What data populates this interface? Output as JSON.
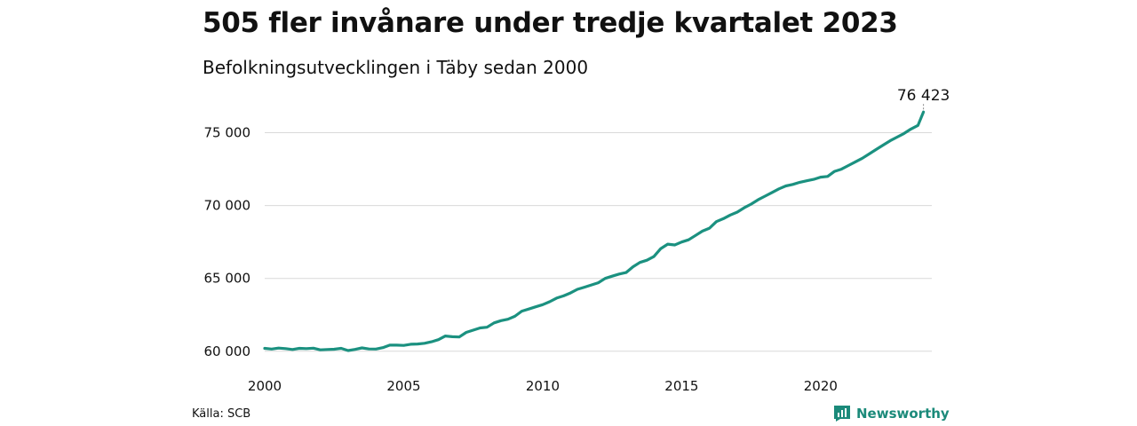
{
  "chart_data": {
    "type": "line",
    "title": "505 fler invånare under tredje kvartalet 2023",
    "subtitle": "Befolkningsutvecklingen i Täby sedan 2000",
    "xlabel": "",
    "ylabel": "",
    "xlim": [
      2000.0,
      2024.0
    ],
    "ylim": [
      59500,
      76800
    ],
    "x_ticks": [
      {
        "value": 2000,
        "label": "2000"
      },
      {
        "value": 2005,
        "label": "2005"
      },
      {
        "value": 2010,
        "label": "2010"
      },
      {
        "value": 2015,
        "label": "2015"
      },
      {
        "value": 2020,
        "label": "2020"
      }
    ],
    "y_ticks": [
      {
        "value": 60000,
        "label": "60 000"
      },
      {
        "value": 65000,
        "label": "65 000"
      },
      {
        "value": 70000,
        "label": "70 000"
      },
      {
        "value": 75000,
        "label": "75 000"
      }
    ],
    "grid": "horizontal",
    "line_color": "#1b9180",
    "end_label": "76 423",
    "series": [
      {
        "x": [
          2000.0,
          2000.25,
          2000.5,
          2000.75,
          2001.0,
          2001.25,
          2001.5,
          2001.75,
          2002.0,
          2002.25,
          2002.5,
          2002.75,
          2003.0,
          2003.25,
          2003.5,
          2003.75,
          2004.0,
          2004.25,
          2004.5,
          2004.75,
          2005.0,
          2005.25,
          2005.5,
          2005.75,
          2006.0,
          2006.25,
          2006.5,
          2006.75,
          2007.0,
          2007.25,
          2007.5,
          2007.75,
          2008.0,
          2008.25,
          2008.5,
          2008.75,
          2009.0,
          2009.25,
          2009.5,
          2009.75,
          2010.0,
          2010.25,
          2010.5,
          2010.75,
          2011.0,
          2011.25,
          2011.5,
          2011.75,
          2012.0,
          2012.25,
          2012.5,
          2012.75,
          2013.0,
          2013.25,
          2013.5,
          2013.75,
          2014.0,
          2014.25,
          2014.5,
          2014.75,
          2015.0,
          2015.25,
          2015.5,
          2015.75,
          2016.0,
          2016.25,
          2016.5,
          2016.75,
          2017.0,
          2017.25,
          2017.5,
          2017.75,
          2018.0,
          2018.25,
          2018.5,
          2018.75,
          2019.0,
          2019.25,
          2019.5,
          2019.75,
          2020.0,
          2020.25,
          2020.5,
          2020.75,
          2021.0,
          2021.25,
          2021.5,
          2021.75,
          2022.0,
          2022.25,
          2022.5,
          2022.75,
          2023.0,
          2023.25,
          2023.5
        ],
        "values": [
          60200,
          60150,
          60220,
          60180,
          60120,
          60200,
          60180,
          60210,
          60100,
          60120,
          60140,
          60200,
          60050,
          60130,
          60230,
          60160,
          60150,
          60250,
          60420,
          60420,
          60400,
          60480,
          60500,
          60550,
          60650,
          60800,
          61050,
          61000,
          60980,
          61300,
          61450,
          61600,
          61650,
          61950,
          62100,
          62200,
          62400,
          62750,
          62900,
          63050,
          63200,
          63400,
          63650,
          63800,
          64000,
          64250,
          64400,
          64550,
          64700,
          65000,
          65150,
          65300,
          65400,
          65800,
          66100,
          66250,
          66500,
          67050,
          67350,
          67300,
          67500,
          67650,
          67950,
          68250,
          68450,
          68900,
          69100,
          69350,
          69550,
          69850,
          70100,
          70400,
          70650,
          70900,
          71150,
          71350,
          71450,
          71600,
          71700,
          71800,
          71950,
          72000,
          72350,
          72500,
          72750,
          73000,
          73250,
          73550,
          73850,
          74150,
          74450,
          74700,
          74950,
          75250,
          75500
        ]
      }
    ]
  },
  "footer": {
    "source": "Källa: SCB",
    "brand": "Newsworthy"
  }
}
